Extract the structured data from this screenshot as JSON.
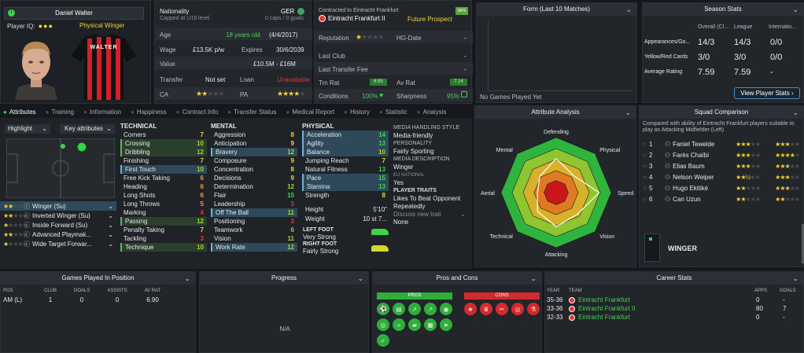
{
  "player": {
    "name": "Daniel Walter",
    "iq_label": "Player IQ:",
    "role": "Physical Winger",
    "shirt_text": "WALTER"
  },
  "info": {
    "nationality_label": "Nationality",
    "nationality_sub": "Capped at U19 level",
    "nationality_value": "GER",
    "caps": "0 caps / 0 goals",
    "age_label": "Age",
    "age_value": "18 years old",
    "dob": "(4/4/2017)",
    "wage_label": "Wage",
    "wage_value": "£13.5K p/w",
    "expires_label": "Expires",
    "expires_value": "30/6/2039",
    "value_label": "Value",
    "value_value": "£10.5M - £16M",
    "transfer_label": "Transfer",
    "transfer_value": "Not set",
    "loan_label": "Loan",
    "loan_value": "Unavailable",
    "ca_label": "CA",
    "pa_label": "PA"
  },
  "contract": {
    "contracted_to": "Contracted to Eintracht Frankfurt",
    "club": "Eintracht Frankfurt II",
    "status": "Future Prospect",
    "badge": "WFE",
    "reputation_label": "Reputation",
    "hg_label": "HG-Date",
    "hg_value": "-",
    "last_club_label": "Last Club",
    "last_club_value": "-",
    "last_fee_label": "Last Transfer Fee",
    "last_fee_value": "-",
    "trn_label": "Trn Rat",
    "trn_value": "6.85",
    "av_label": "Av Rat",
    "av_value": "7.14",
    "conditions_label": "Conditions",
    "conditions_value": "100%",
    "sharpness_label": "Sharpness",
    "sharpness_value": "95%"
  },
  "form": {
    "title": "Form (Last 10 Matches)",
    "empty": "No Games Played Yet"
  },
  "season": {
    "title": "Season Stats",
    "col_overall": "Overall (Cl...",
    "col_league": "League",
    "col_intl": "Internatio...",
    "rows": [
      {
        "label": "Appearances/Go...",
        "overall": "14/3",
        "league": "14/3",
        "intl": "0/0"
      },
      {
        "label": "Yellow/Red Cards",
        "overall": "3/0",
        "league": "3/0",
        "intl": "0/0"
      },
      {
        "label": "Average Rating",
        "overall": "7.59",
        "league": "7.59",
        "intl": "-"
      }
    ],
    "button": "View Player Stats"
  },
  "tabs": [
    "Attributes",
    "Training",
    "Information",
    "Happiness",
    "Contract Info",
    "Transfer Status",
    "Medical Report",
    "History",
    "Statistic",
    "Analysis"
  ],
  "controls": {
    "highlight": "Highlight",
    "key_attributes": "Key attributes"
  },
  "roles": [
    {
      "name": "Winger (Su)"
    },
    {
      "name": "Inverted Winger (Su)"
    },
    {
      "name": "Inside Forward (Su)"
    },
    {
      "name": "Advanced Playmak..."
    },
    {
      "name": "Wide Target Forwar..."
    }
  ],
  "technical": {
    "title": "TECHNICAL",
    "items": [
      {
        "name": "Corners",
        "value": "7"
      },
      {
        "name": "Crossing",
        "value": "10"
      },
      {
        "name": "Dribbling",
        "value": "12"
      },
      {
        "name": "Finishing",
        "value": "7"
      },
      {
        "name": "First Touch",
        "value": "10"
      },
      {
        "name": "Free Kick Taking",
        "value": "6"
      },
      {
        "name": "Heading",
        "value": "6"
      },
      {
        "name": "Long Shots",
        "value": "6"
      },
      {
        "name": "Long Throws",
        "value": "5"
      },
      {
        "name": "Marking",
        "value": "4"
      },
      {
        "name": "Passing",
        "value": "12"
      },
      {
        "name": "Penalty Taking",
        "value": "7"
      },
      {
        "name": "Tackling",
        "value": "3"
      },
      {
        "name": "Technique",
        "value": "10"
      }
    ]
  },
  "mental": {
    "title": "MENTAL",
    "items": [
      {
        "name": "Aggression",
        "value": "8"
      },
      {
        "name": "Anticipation",
        "value": "9"
      },
      {
        "name": "Bravery",
        "value": "12"
      },
      {
        "name": "Composure",
        "value": "9"
      },
      {
        "name": "Concentration",
        "value": "8"
      },
      {
        "name": "Decisions",
        "value": "9"
      },
      {
        "name": "Determination",
        "value": "12"
      },
      {
        "name": "Flair",
        "value": "15"
      },
      {
        "name": "Leadership",
        "value": "3"
      },
      {
        "name": "Off The Ball",
        "value": "11"
      },
      {
        "name": "Positioning",
        "value": "3"
      },
      {
        "name": "Teamwork",
        "value": "6"
      },
      {
        "name": "Vision",
        "value": "11"
      },
      {
        "name": "Work Rate",
        "value": "12"
      }
    ]
  },
  "physical": {
    "title": "PHYSICAL",
    "items": [
      {
        "name": "Acceleration",
        "value": "14"
      },
      {
        "name": "Agility",
        "value": "13"
      },
      {
        "name": "Balance",
        "value": "10"
      },
      {
        "name": "Jumping Reach",
        "value": "7"
      },
      {
        "name": "Natural Fitness",
        "value": "13"
      },
      {
        "name": "Pace",
        "value": "15"
      },
      {
        "name": "Stamina",
        "value": "13"
      },
      {
        "name": "Strength",
        "value": "8"
      }
    ],
    "height_label": "Height",
    "height_value": "5'10\"",
    "weight_label": "Weight",
    "weight_value": "10 st 7...",
    "left_foot_label": "LEFT FOOT",
    "left_foot_value": "Very Strong",
    "right_foot_label": "RIGHT FOOT",
    "right_foot_value": "Fairly Strong"
  },
  "media": {
    "style_title": "MEDIA HANDLING STYLE",
    "style_value": "Media-friendly",
    "personality_title": "PERSONALITY",
    "personality_value": "Fairly Sporting",
    "description_title": "MEDIA DESCRIPTION",
    "description_value": "Winger",
    "eu_title": "EU NATIONAL",
    "eu_value": "Yes",
    "traits_title": "PLAYER TRAITS",
    "trait_1": "Likes To Beat Opponent Repeatedly",
    "discuss": "Discuss new trait",
    "trait_2": "None"
  },
  "analysis": {
    "title": "Attribute Analysis",
    "labels": [
      "Defending",
      "Physical",
      "Speed",
      "Vision",
      "Attacking",
      "Technical",
      "Aerial",
      "Mental"
    ]
  },
  "squad": {
    "title": "Squad Comparison",
    "desc": "Compared with ability of Eintracht Frankfurt players suitable to play as Attacking Midfielder (Left)",
    "players": [
      {
        "rank": "1",
        "name": "Faniel Tewelde"
      },
      {
        "rank": "2",
        "name": "Farès Chaïbi"
      },
      {
        "rank": "3",
        "name": "Elias Baum"
      },
      {
        "rank": "4",
        "name": "Nelson Weiper"
      },
      {
        "rank": "5",
        "name": "Hugo Ekitiké"
      },
      {
        "rank": "6",
        "name": "Can Uzun"
      }
    ],
    "position": "WINGER"
  },
  "games": {
    "title": "Games Played In Position",
    "cols": [
      "POS",
      "CLUB",
      "GOALS",
      "ASSISTS",
      "AV RAT"
    ],
    "row": [
      "AM (L)",
      "1",
      "0",
      "0",
      "6.90"
    ]
  },
  "progress": {
    "title": "Progress",
    "empty": "N/A"
  },
  "proscons": {
    "title": "Pros and Cons",
    "pros": "PROS",
    "cons": "CONS"
  },
  "career": {
    "title": "Career Stats",
    "cols": [
      "YEAR",
      "TEAM",
      "APPS",
      "GOALS"
    ],
    "rows": [
      {
        "year": "35-36",
        "team": "Eintracht Frankfurt",
        "apps": "0",
        "goals": "-"
      },
      {
        "year": "33-36",
        "team": "Eintracht Frankfurt II",
        "apps": "80",
        "goals": "7"
      },
      {
        "year": "32-33",
        "team": "Eintracht Frankfurt",
        "apps": "0",
        "goals": "-"
      }
    ]
  },
  "colors": {
    "accent_green": "#3fd34c",
    "star_yellow": "#f3d230",
    "club_red": "#e2363a",
    "highlight_blue": "#6fb1d6"
  }
}
